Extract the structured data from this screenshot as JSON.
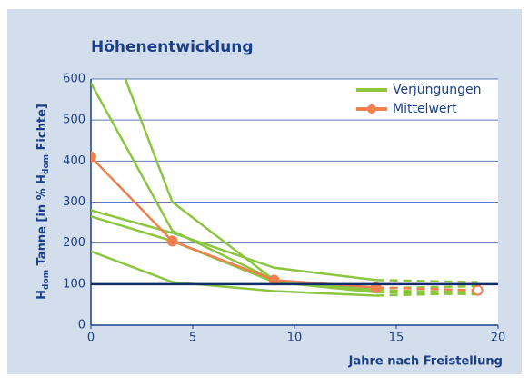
{
  "chart_data": {
    "type": "line",
    "title": "Höhenentwicklung",
    "ylabel_parts": [
      "H",
      "dom",
      " Tanne [in % H",
      "dom",
      " Fichte]"
    ],
    "xlabel": "Jahre nach Freistellung",
    "x": [
      0,
      4,
      9,
      14,
      19
    ],
    "projection_start_x": 14,
    "xlim": [
      0,
      20
    ],
    "xticks": [
      0,
      5,
      10,
      15,
      20
    ],
    "ylim": [
      0,
      600
    ],
    "yticks": [
      0,
      100,
      200,
      300,
      400,
      500,
      600
    ],
    "grid": true,
    "reference_line": 100,
    "legend": "top-right",
    "series": [
      {
        "name": "Verjüngungen",
        "color": "#8cc63f",
        "lines": [
          [
            590,
            230,
            110,
            90,
            95
          ],
          [
            820,
            300,
            110,
            85,
            80
          ],
          [
            280,
            225,
            140,
            110,
            105
          ],
          [
            265,
            205,
            105,
            80,
            75
          ],
          [
            180,
            105,
            83,
            72,
            78
          ]
        ]
      },
      {
        "name": "Mittelwert",
        "color": "#f08050",
        "values": [
          410,
          205,
          110,
          92,
          85
        ]
      }
    ]
  }
}
